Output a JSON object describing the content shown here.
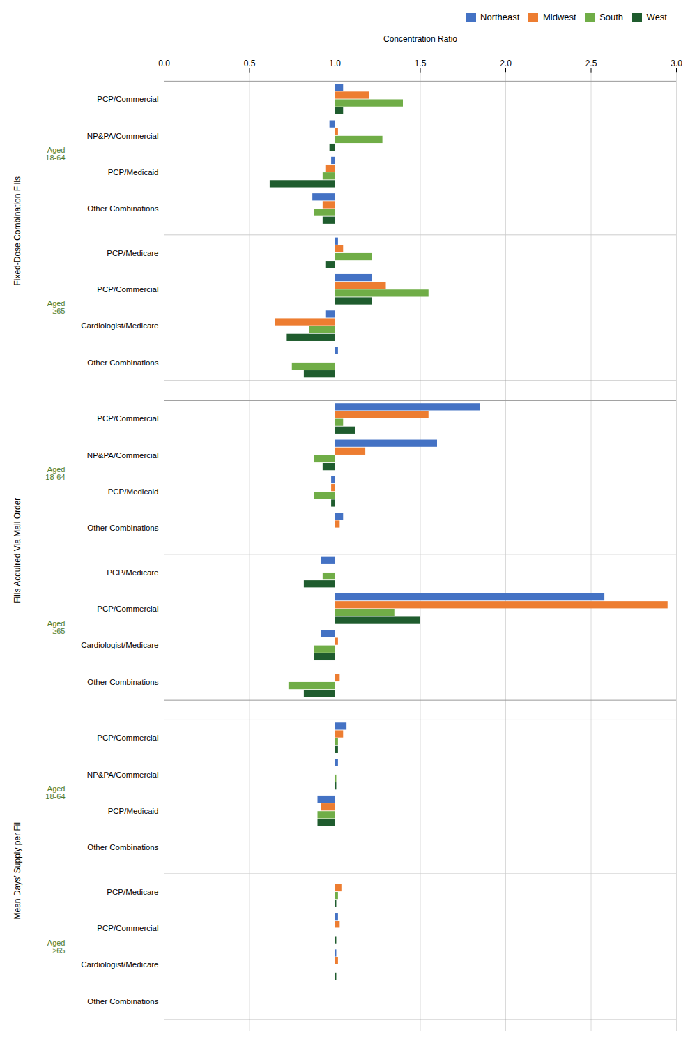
{
  "chart_data": {
    "type": "bar",
    "orientation": "horizontal",
    "title": "Concentration Ratio",
    "xlim": [
      0.0,
      3.0
    ],
    "xticks": [
      {
        "value": 0.0,
        "label": "0.0"
      },
      0.5,
      {
        "value": 1.0,
        "label": "1.0"
      },
      1.5,
      {
        "value": 2.0,
        "label": "2.0"
      },
      2.5,
      {
        "value": 3.0,
        "label": "3.0"
      }
    ],
    "grid": true,
    "legend": "upper right",
    "baseline": 1.0,
    "sections": [
      {
        "label": "Fixed-Dose Combination Fills",
        "age_groups": [
          {
            "label": "Aged\n18-64",
            "categories": [
              "PCP/Commercial",
              "NP&PA/Commercial",
              "PCP/Medicaid",
              "Other Combinations"
            ]
          },
          {
            "label": "Aged\n≥65",
            "categories": [
              "PCP/Medicare",
              "PCP/Commercial",
              "Cardiologist/Medicare",
              "Other Combinations"
            ]
          }
        ]
      },
      {
        "label": "Fills Acquired Via Mail Order",
        "age_groups": [
          {
            "label": "Aged\n18-64",
            "categories": [
              "PCP/Commercial",
              "NP&PA/Commercial",
              "PCP/Medicaid",
              "Other Combinations"
            ]
          },
          {
            "label": "Aged\n≥65",
            "categories": [
              "PCP/Medicare",
              "PCP/Commercial",
              "Cardiologist/Medicare",
              "Other Combinations"
            ]
          }
        ]
      },
      {
        "label": "Mean Days’ Supply per Fill",
        "age_groups": [
          {
            "label": "Aged\n18-64",
            "categories": [
              "PCP/Commercial",
              "NP&PA/Commercial",
              "PCP/Medicaid",
              "Other Combinations"
            ]
          },
          {
            "label": "Aged\n≥65",
            "categories": [
              "PCP/Medicare",
              "PCP/Commercial",
              "Cardiologist/Medicare",
              "Other Combinations"
            ]
          }
        ]
      }
    ],
    "series": [
      {
        "name": "Northeast",
        "color": "#4472C4",
        "values": [
          1.05,
          0.97,
          0.98,
          0.87,
          1.02,
          1.22,
          0.95,
          1.02,
          1.85,
          1.6,
          0.98,
          1.05,
          0.92,
          2.58,
          0.92,
          1.0,
          1.07,
          1.02,
          0.9,
          null,
          null,
          1.02,
          1.01,
          1.0
        ]
      },
      {
        "name": "Midwest",
        "color": "#ED7D31",
        "values": [
          1.2,
          1.02,
          0.95,
          0.93,
          1.05,
          1.3,
          0.65,
          null,
          1.55,
          1.18,
          0.98,
          1.03,
          null,
          2.95,
          1.02,
          1.03,
          1.05,
          null,
          0.92,
          1.0,
          1.04,
          1.03,
          1.02,
          null
        ]
      },
      {
        "name": "South",
        "color": "#70AD47",
        "values": [
          1.4,
          1.28,
          0.93,
          0.88,
          1.22,
          1.55,
          0.85,
          0.75,
          1.05,
          0.88,
          0.88,
          null,
          0.93,
          1.35,
          0.88,
          0.73,
          1.02,
          1.01,
          0.9,
          null,
          1.02,
          null,
          null,
          null
        ]
      },
      {
        "name": "West",
        "color": "#1F5C2E",
        "values": [
          1.05,
          0.97,
          0.62,
          0.93,
          0.95,
          1.22,
          0.72,
          0.82,
          1.12,
          0.93,
          0.98,
          null,
          0.82,
          1.5,
          0.88,
          0.82,
          1.02,
          1.01,
          0.9,
          1.0,
          1.01,
          1.01,
          1.01,
          null
        ]
      }
    ]
  }
}
